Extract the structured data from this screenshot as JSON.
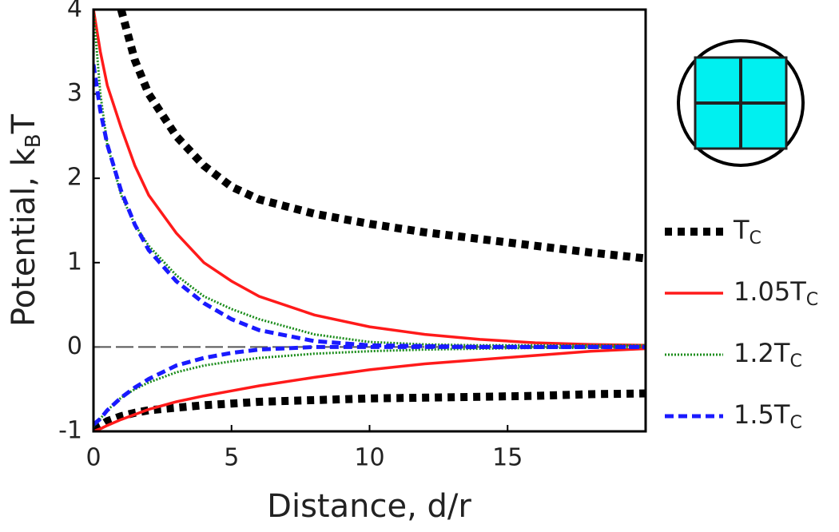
{
  "chart_data": {
    "type": "line",
    "x_label": "Distance, d/r",
    "y_label": [
      "Potential, k",
      "B",
      "T"
    ],
    "xlim": [
      0,
      20
    ],
    "ylim": [
      -1,
      4
    ],
    "xticks": [
      0,
      5,
      10,
      15
    ],
    "yticks": [
      -1,
      0,
      1,
      2,
      3,
      4
    ],
    "zero_line": true,
    "legend": "right",
    "x": [
      0,
      0.25,
      0.5,
      1,
      1.5,
      2,
      3,
      4,
      5,
      6,
      8,
      10,
      12,
      14,
      16,
      18,
      20
    ],
    "series": [
      {
        "name": "T",
        "subscript": "C",
        "color": "#000000",
        "style": "dotted-thick",
        "upper": [
          null,
          null,
          null,
          4.0,
          3.4,
          3.0,
          2.5,
          2.15,
          1.9,
          1.75,
          1.58,
          1.46,
          1.36,
          1.28,
          1.2,
          1.12,
          1.05
        ],
        "lower": [
          -0.97,
          -0.93,
          -0.88,
          -0.82,
          -0.78,
          -0.75,
          -0.72,
          -0.69,
          -0.67,
          -0.65,
          -0.63,
          -0.61,
          -0.6,
          -0.59,
          -0.58,
          -0.56,
          -0.55
        ]
      },
      {
        "name": "1.05T",
        "subscript": "C",
        "color": "#ff1a1a",
        "style": "solid",
        "upper": [
          4.0,
          3.5,
          3.1,
          2.6,
          2.15,
          1.8,
          1.35,
          1.0,
          0.78,
          0.6,
          0.38,
          0.24,
          0.15,
          0.09,
          0.05,
          0.03,
          0.02
        ],
        "lower": [
          -1.0,
          -0.97,
          -0.93,
          -0.86,
          -0.8,
          -0.74,
          -0.65,
          -0.58,
          -0.52,
          -0.46,
          -0.36,
          -0.27,
          -0.2,
          -0.15,
          -0.1,
          -0.05,
          -0.02
        ]
      },
      {
        "name": "1.2T",
        "subscript": "C",
        "color": "#1a8c1a",
        "style": "dotted",
        "upper": [
          4.0,
          3.0,
          2.4,
          1.8,
          1.45,
          1.2,
          0.85,
          0.6,
          0.45,
          0.33,
          0.15,
          0.06,
          0.03,
          0.02,
          0.02,
          0.02,
          0.02
        ],
        "lower": [
          -0.95,
          -0.85,
          -0.75,
          -0.6,
          -0.5,
          -0.42,
          -0.3,
          -0.22,
          -0.17,
          -0.13,
          -0.08,
          -0.05,
          -0.03,
          -0.02,
          -0.01,
          -0.01,
          0.0
        ]
      },
      {
        "name": "1.5T",
        "subscript": "C",
        "color": "#1a1aff",
        "style": "dashed",
        "upper": [
          3.35,
          2.8,
          2.4,
          1.85,
          1.45,
          1.15,
          0.78,
          0.52,
          0.33,
          0.2,
          0.07,
          0.02,
          0.01,
          0.0,
          0.0,
          0.0,
          0.0
        ],
        "lower": [
          -0.92,
          -0.85,
          -0.75,
          -0.6,
          -0.48,
          -0.38,
          -0.22,
          -0.13,
          -0.07,
          -0.03,
          0.0,
          0.0,
          0.0,
          0.0,
          0.0,
          0.0,
          0.0
        ]
      }
    ]
  }
}
